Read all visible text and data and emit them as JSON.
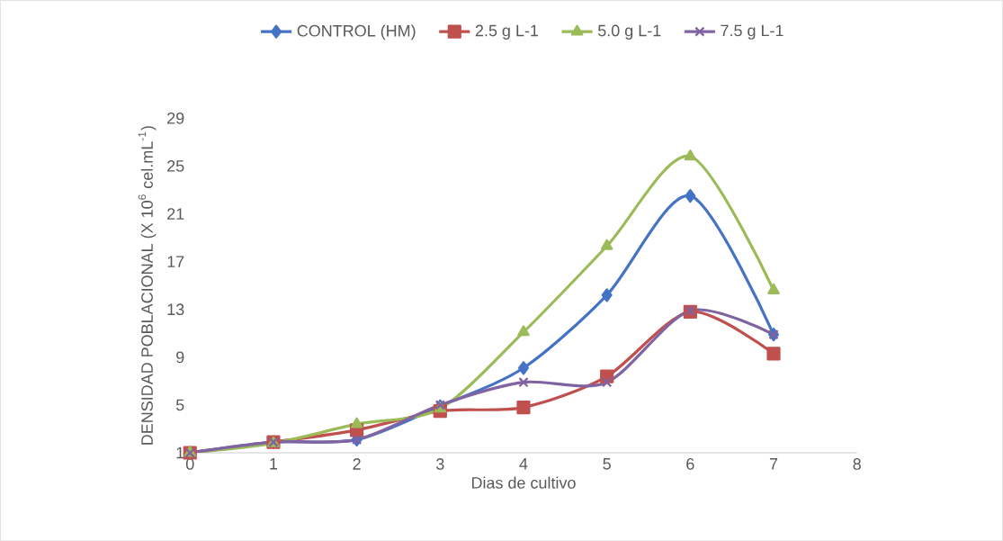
{
  "chart_data": {
    "type": "line",
    "xlabel": "Dias de cultivo",
    "ylabel": "DENSIDAD POBLACIONAL (X 10$^{6}$ cel.mL$^{-1}$)",
    "x": [
      0,
      1,
      2,
      3,
      4,
      5,
      6,
      7
    ],
    "series": [
      {
        "name": "CONTROL (HM)",
        "color": "#4472c4",
        "marker": "diamond",
        "values": [
          1.0,
          1.9,
          2.1,
          4.9,
          8.1,
          14.2,
          22.5,
          10.9
        ]
      },
      {
        "name": "2.5 g L-1",
        "color": "#c0504d",
        "marker": "square",
        "values": [
          1.0,
          1.9,
          2.9,
          4.5,
          4.8,
          7.4,
          12.8,
          9.3
        ]
      },
      {
        "name": "5.0 g L-1",
        "color": "#9bbb59",
        "marker": "triangle",
        "values": [
          1.0,
          1.8,
          3.4,
          4.7,
          11.1,
          18.3,
          25.8,
          14.6
        ]
      },
      {
        "name": "7.5 g L-1",
        "color": "#8064a2",
        "marker": "cross",
        "values": [
          1.0,
          1.9,
          2.1,
          5.0,
          6.9,
          6.9,
          12.9,
          10.9
        ]
      }
    ],
    "xlim": [
      0,
      8
    ],
    "xticks": [
      0,
      1,
      2,
      3,
      4,
      5,
      6,
      7,
      8
    ],
    "ylim": [
      1,
      29
    ],
    "yticks": [
      1,
      5,
      9,
      13,
      17,
      21,
      25,
      29
    ],
    "legend": "top",
    "grid": false,
    "line_style": "solid"
  }
}
